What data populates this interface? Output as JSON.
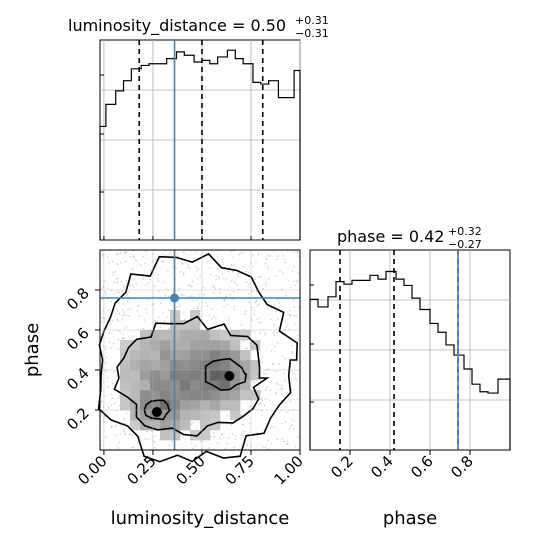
{
  "chart_data": [
    {
      "type": "histogram",
      "panel": "luminosity_distance marginal",
      "title": {
        "prefix": "luminosity_distance = ",
        "value": "0.50",
        "plus": "+0.31",
        "minus": "−0.31"
      },
      "xlim": [
        -0.02,
        1.0
      ],
      "ylim": [
        0,
        1.18
      ],
      "bin_edges": [
        -0.02,
        0.01,
        0.06,
        0.1,
        0.14,
        0.19,
        0.23,
        0.28,
        0.32,
        0.37,
        0.41,
        0.46,
        0.5,
        0.54,
        0.58,
        0.63,
        0.67,
        0.71,
        0.76,
        0.8,
        0.84,
        0.89,
        0.94,
        0.97,
        1.0
      ],
      "counts": [
        0.67,
        0.8,
        0.88,
        0.94,
        1.01,
        1.03,
        1.04,
        1.04,
        1.07,
        1.11,
        1.09,
        1.05,
        1.06,
        1.04,
        1.08,
        1.12,
        1.07,
        1.04,
        0.93,
        0.92,
        0.94,
        0.84,
        0.84,
        1.0
      ],
      "quantile_lines": [
        0.18,
        0.5,
        0.81
      ],
      "truth": 0.36,
      "grid": true,
      "yticks_shown": false
    },
    {
      "type": "heatmap",
      "panel": "luminosity_distance vs phase 2D density",
      "xlabel": "luminosity_distance",
      "ylabel": "phase",
      "xlim": [
        -0.02,
        1.0
      ],
      "ylim": [
        0.0,
        1.0
      ],
      "xticks": [
        "0.00",
        "0.25",
        "0.50",
        "0.75",
        "1.00"
      ],
      "xtick_values": [
        0.0,
        0.25,
        0.5,
        0.75,
        1.0
      ],
      "yticks": [
        "0.2",
        "0.4",
        "0.6",
        "0.8"
      ],
      "ytick_values": [
        0.2,
        0.4,
        0.6,
        0.8
      ],
      "truth_point": [
        0.36,
        0.76
      ],
      "high_density_dots": [
        [
          0.27,
          0.19
        ],
        [
          0.64,
          0.37
        ]
      ],
      "grid": true
    },
    {
      "type": "histogram",
      "panel": "phase marginal",
      "title": {
        "prefix": "phase = ",
        "value": "0.42",
        "plus": "+0.32",
        "minus": "−0.27"
      },
      "xlabel": "phase",
      "xlim": [
        0.0,
        1.0
      ],
      "ylim": [
        0,
        1.58
      ],
      "xticks": [
        "0.2",
        "0.4",
        "0.6",
        "0.8"
      ],
      "xtick_values": [
        0.2,
        0.4,
        0.6,
        0.8
      ],
      "bin_edges": [
        0.0,
        0.04,
        0.09,
        0.13,
        0.17,
        0.21,
        0.26,
        0.3,
        0.34,
        0.38,
        0.43,
        0.47,
        0.51,
        0.55,
        0.6,
        0.64,
        0.68,
        0.72,
        0.77,
        0.81,
        0.85,
        0.89,
        0.94,
        0.97,
        1.0
      ],
      "counts": [
        1.19,
        1.13,
        1.21,
        1.33,
        1.31,
        1.34,
        1.34,
        1.38,
        1.35,
        1.41,
        1.35,
        1.3,
        1.2,
        1.11,
        1.0,
        0.93,
        0.83,
        0.75,
        0.64,
        0.52,
        0.46,
        0.45,
        0.56,
        0.56
      ],
      "quantile_lines": [
        0.15,
        0.42,
        0.74
      ],
      "truth": 0.74,
      "grid": true,
      "yticks_shown": false
    }
  ]
}
